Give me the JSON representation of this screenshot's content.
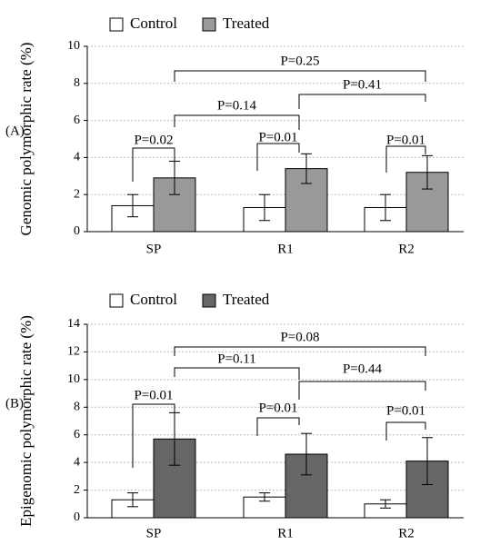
{
  "chart_data": [
    {
      "type": "bar",
      "panel_label": "(A)",
      "y_label": "Genomic polymorphic rate (%)",
      "categories": [
        "SP",
        "R1",
        "R2"
      ],
      "series": [
        {
          "name": "Control",
          "color": "#ffffff",
          "values": [
            1.4,
            1.3,
            1.3
          ],
          "errors": [
            0.6,
            0.7,
            0.7
          ]
        },
        {
          "name": "Treated",
          "color": "#999999",
          "values": [
            2.9,
            3.4,
            3.2
          ],
          "errors": [
            0.9,
            0.8,
            0.9
          ]
        }
      ],
      "ylim": [
        0,
        10
      ],
      "yticks": [
        0,
        2,
        4,
        6,
        8,
        10
      ],
      "grid": true,
      "annotations": [
        "P=0.02",
        "P=0.01",
        "P=0.01",
        "P=0.14",
        "P=0.41",
        "P=0.25"
      ]
    },
    {
      "type": "bar",
      "panel_label": "(B)",
      "y_label": "Epigenomic polymorphic rate (%)",
      "categories": [
        "SP",
        "R1",
        "R2"
      ],
      "series": [
        {
          "name": "Control",
          "color": "#ffffff",
          "values": [
            1.3,
            1.5,
            1.0
          ],
          "errors": [
            0.5,
            0.3,
            0.3
          ]
        },
        {
          "name": "Treated",
          "color": "#666666",
          "values": [
            5.7,
            4.6,
            4.1
          ],
          "errors": [
            1.9,
            1.5,
            1.7
          ]
        }
      ],
      "ylim": [
        0,
        14
      ],
      "yticks": [
        0,
        2,
        4,
        6,
        8,
        10,
        12,
        14
      ],
      "grid": true,
      "annotations": [
        "P=0.01",
        "P=0.01",
        "P=0.01",
        "P=0.11",
        "P=0.44",
        "P=0.08"
      ]
    }
  ]
}
